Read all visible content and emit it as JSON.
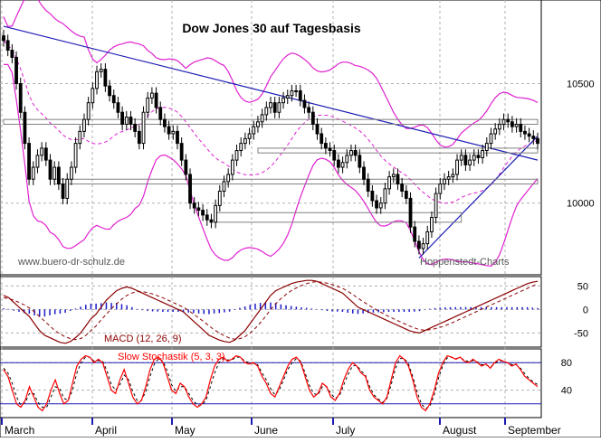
{
  "title": "Dow Jones 30 auf Tagesbasis",
  "watermark_left": "www.buero-dr-schulz.de",
  "watermark_right": "Hoppenstedt-Charts",
  "colors": {
    "background": "#ffffff",
    "grid": "#b0b0b0",
    "candle": "#000000",
    "bollinger": "#e020d0",
    "moving_average": "#e020d0",
    "trendline": "#1c1cb4",
    "support_box": "#808080",
    "macd_line": "#8b0000",
    "macd_signal": "#8b0000",
    "macd_histogram": "#1c1cc8",
    "stoch_k": "#ff0000",
    "stoch_d": "#000000",
    "stoch_levels": "#1c1cb4",
    "month_axis": "#1c1cb4"
  },
  "months": [
    "March",
    "April",
    "May",
    "June",
    "July",
    "August",
    "September"
  ],
  "chart_data": [
    {
      "type": "candlestick",
      "title": "Dow Jones 30 auf Tagesbasis",
      "y_ticks": [
        10000,
        10500
      ],
      "ylim": [
        9700,
        10850
      ],
      "grid": true,
      "trading_days": 127,
      "close": [
        10680,
        10640,
        10610,
        10500,
        10380,
        10250,
        10100,
        10150,
        10200,
        10230,
        10180,
        10100,
        10150,
        10080,
        10020,
        10100,
        10150,
        10250,
        10300,
        10350,
        10420,
        10480,
        10550,
        10560,
        10490,
        10450,
        10420,
        10380,
        10330,
        10360,
        10330,
        10300,
        10250,
        10380,
        10440,
        10460,
        10400,
        10350,
        10320,
        10290,
        10300,
        10250,
        10180,
        10120,
        10000,
        9980,
        9970,
        9950,
        9930,
        9920,
        9990,
        10050,
        10090,
        10120,
        10180,
        10220,
        10250,
        10270,
        10290,
        10320,
        10340,
        10370,
        10400,
        10420,
        10380,
        10420,
        10440,
        10450,
        10470,
        10470,
        10430,
        10400,
        10380,
        10330,
        10290,
        10250,
        10230,
        10220,
        10180,
        10150,
        10170,
        10200,
        10220,
        10200,
        10150,
        10100,
        10050,
        10010,
        9980,
        10000,
        10060,
        10110,
        10120,
        10080,
        10050,
        10020,
        9900,
        9840,
        9810,
        9830,
        9880,
        9940,
        10040,
        10080,
        10100,
        10110,
        10120,
        10180,
        10200,
        10160,
        10180,
        10200,
        10190,
        10220,
        10250,
        10290,
        10310,
        10330,
        10350,
        10340,
        10320,
        10330,
        10300,
        10290,
        10280,
        10270,
        10250
      ],
      "indicators": [
        "Bollinger Bands",
        "Moving Average",
        "Trendlines",
        "Support/Resistance"
      ]
    },
    {
      "type": "line",
      "title": "MACD (12, 26, 9)",
      "y_ticks": [
        50,
        0,
        -50
      ],
      "ylim": [
        -80,
        70
      ],
      "series": [
        {
          "name": "MACD",
          "values": [
            30,
            25,
            15,
            5,
            -5,
            -15,
            -30,
            -45,
            -55,
            -60,
            -65,
            -70,
            -72,
            -68,
            -60,
            -50,
            -35,
            -20,
            -10,
            5,
            20,
            30,
            40,
            45,
            48,
            45,
            40,
            35,
            30,
            25,
            20,
            15,
            10,
            5,
            0,
            -5,
            -15,
            -25,
            -35,
            -45,
            -55,
            -60,
            -65,
            -68,
            -70,
            -65,
            -55,
            -45,
            -30,
            -15,
            0,
            15,
            30,
            40,
            45,
            50,
            55,
            58,
            60,
            62,
            62,
            60,
            55,
            50,
            45,
            40,
            35,
            25,
            15,
            5,
            0,
            -5,
            -10,
            -15,
            -20,
            -25,
            -30,
            -35,
            -40,
            -45,
            -48,
            -50,
            -45,
            -40,
            -35,
            -30,
            -25,
            -20,
            -15,
            -10,
            -5,
            0,
            5,
            10,
            15,
            20,
            25,
            30,
            35,
            40,
            45,
            50,
            55,
            58,
            60
          ]
        },
        {
          "name": "Signal",
          "values": [
            25,
            23,
            20,
            15,
            10,
            3,
            -5,
            -15,
            -25,
            -35,
            -45,
            -52,
            -58,
            -62,
            -64,
            -62,
            -55,
            -45,
            -35,
            -22,
            -10,
            2,
            12,
            22,
            30,
            35,
            38,
            38,
            36,
            33,
            29,
            25,
            20,
            15,
            10,
            5,
            -2,
            -10,
            -18,
            -26,
            -35,
            -43,
            -50,
            -56,
            -61,
            -63,
            -62,
            -58,
            -50,
            -40,
            -28,
            -15,
            0,
            12,
            23,
            32,
            40,
            46,
            51,
            55,
            58,
            59,
            58,
            56,
            53,
            49,
            45,
            39,
            32,
            24,
            17,
            10,
            3,
            -3,
            -9,
            -15,
            -20,
            -25,
            -30,
            -35,
            -39,
            -43,
            -44,
            -43,
            -41,
            -38,
            -34,
            -30,
            -25,
            -20,
            -15,
            -10,
            -5,
            0,
            5,
            10,
            15,
            20,
            25,
            30,
            35,
            40,
            45,
            50,
            54
          ]
        },
        {
          "name": "Histogram",
          "values": [
            5,
            2,
            -5,
            -10,
            -15,
            -18,
            -25,
            -30,
            -30,
            -25,
            -20,
            -18,
            -14,
            -6,
            4,
            12,
            20,
            25,
            25,
            27,
            30,
            28,
            28,
            23,
            18,
            10,
            2,
            -3,
            -6,
            -8,
            -9,
            -10,
            -10,
            -10,
            -10,
            -10,
            -13,
            -15,
            -17,
            -19,
            -20,
            -17,
            -15,
            -12,
            -9,
            -2,
            7,
            13,
            20,
            25,
            28,
            30,
            30,
            28,
            22,
            18,
            15,
            12,
            9,
            7,
            4,
            1,
            -3,
            -6,
            -8,
            -9,
            -10,
            -14,
            -17,
            -19,
            -17,
            -15,
            -13,
            -12,
            -11,
            -10,
            -10,
            -10,
            -10,
            -10,
            -9,
            -7,
            -1,
            3,
            6,
            8,
            9,
            10,
            10,
            10,
            10,
            10,
            10,
            10,
            10,
            10,
            10,
            10,
            10,
            10,
            10,
            10,
            10,
            8,
            6
          ]
        }
      ]
    },
    {
      "type": "line",
      "title": "Slow Stochastik (5, 3, 3)",
      "y_ticks": [
        80,
        40
      ],
      "ylim": [
        0,
        100
      ],
      "levels": [
        80,
        20
      ],
      "series": [
        {
          "name": "%K",
          "values": [
            70,
            60,
            40,
            20,
            15,
            25,
            45,
            30,
            15,
            10,
            20,
            40,
            55,
            35,
            20,
            25,
            50,
            75,
            85,
            90,
            88,
            80,
            85,
            80,
            60,
            40,
            35,
            55,
            70,
            50,
            30,
            20,
            25,
            45,
            70,
            85,
            88,
            80,
            60,
            40,
            35,
            50,
            45,
            30,
            20,
            15,
            20,
            30,
            55,
            75,
            85,
            88,
            82,
            85,
            90,
            88,
            80,
            78,
            80,
            75,
            60,
            50,
            35,
            30,
            45,
            60,
            75,
            85,
            88,
            80,
            60,
            40,
            30,
            35,
            50,
            45,
            30,
            25,
            35,
            55,
            70,
            80,
            75,
            65,
            60,
            40,
            30,
            25,
            20,
            30,
            55,
            80,
            90,
            85,
            75,
            55,
            30,
            15,
            10,
            20,
            40,
            65,
            80,
            90,
            88,
            85,
            88,
            82,
            80,
            85,
            80,
            75,
            78,
            72,
            80,
            85,
            82,
            80,
            75,
            78,
            70,
            60,
            55,
            50,
            45
          ]
        },
        {
          "name": "%D",
          "values": [
            72,
            65,
            50,
            30,
            18,
            22,
            35,
            35,
            22,
            15,
            15,
            30,
            45,
            42,
            28,
            25,
            40,
            65,
            80,
            88,
            88,
            82,
            83,
            82,
            68,
            48,
            40,
            48,
            62,
            55,
            38,
            25,
            25,
            38,
            60,
            78,
            86,
            82,
            68,
            48,
            38,
            45,
            45,
            35,
            25,
            18,
            18,
            25,
            45,
            65,
            80,
            86,
            84,
            84,
            88,
            88,
            82,
            80,
            79,
            77,
            65,
            55,
            42,
            33,
            40,
            55,
            70,
            80,
            86,
            82,
            65,
            47,
            35,
            33,
            45,
            45,
            35,
            28,
            32,
            48,
            63,
            75,
            76,
            68,
            62,
            45,
            33,
            27,
            22,
            28,
            48,
            72,
            86,
            86,
            78,
            60,
            38,
            20,
            13,
            17,
            33,
            58,
            76,
            87,
            88,
            86,
            87,
            84,
            81,
            83,
            81,
            77,
            77,
            74,
            78,
            83,
            82,
            80,
            77,
            77,
            72,
            64,
            57,
            52,
            48
          ]
        }
      ]
    }
  ]
}
